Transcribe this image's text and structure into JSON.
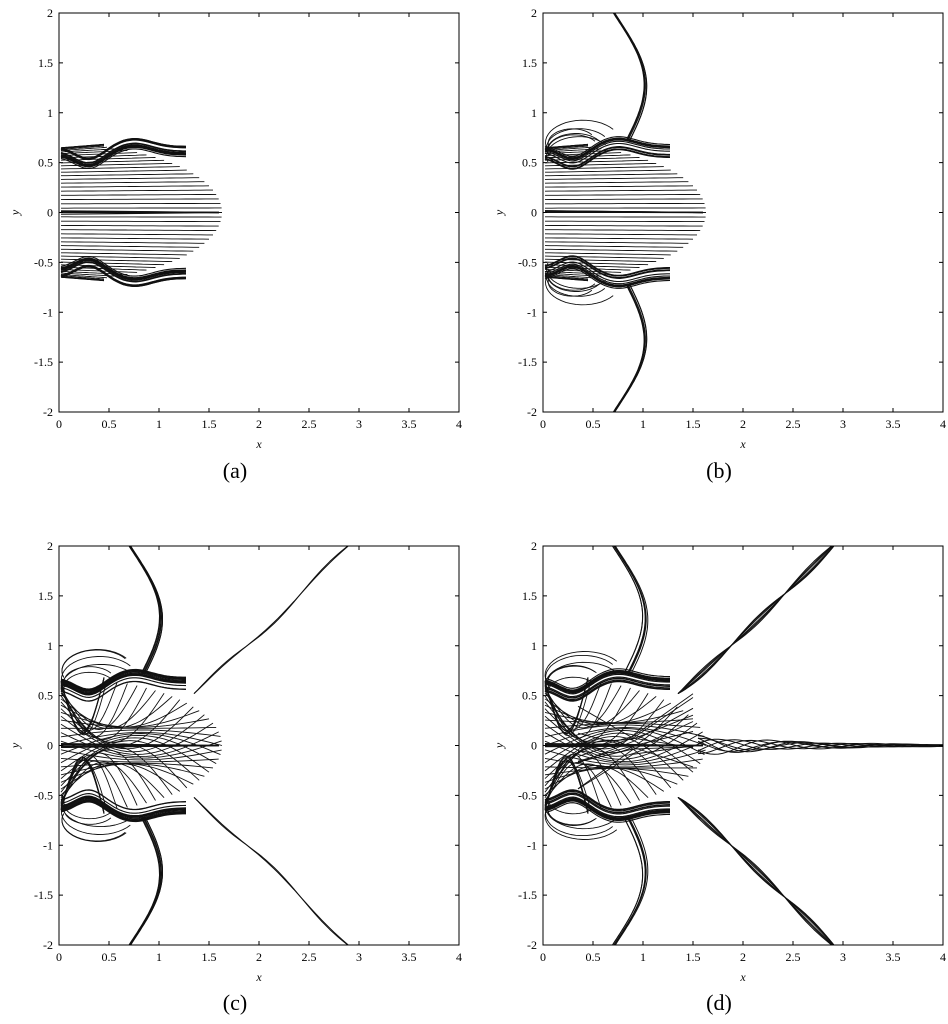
{
  "chart_data": [
    {
      "type": "line",
      "panel": "(a)",
      "xlabel": "x",
      "ylabel": "y",
      "xlim": [
        0,
        4
      ],
      "ylim": [
        -2,
        2
      ],
      "xticks": [
        "0",
        "0.5",
        "1",
        "1.5",
        "2",
        "2.5",
        "3",
        "3.5",
        "4"
      ],
      "yticks": [
        "-2",
        "-1.5",
        "-1",
        "-0.5",
        "0",
        "0.5",
        "1",
        "1.5",
        "2"
      ],
      "grid": false,
      "stage": 0
    },
    {
      "type": "line",
      "panel": "(b)",
      "xlabel": "x",
      "ylabel": "y",
      "xlim": [
        0,
        4
      ],
      "ylim": [
        -2,
        2
      ],
      "xticks": [
        "0",
        "0.5",
        "1",
        "1.5",
        "2",
        "2.5",
        "3",
        "3.5",
        "4"
      ],
      "yticks": [
        "-2",
        "-1.5",
        "-1",
        "-0.5",
        "0",
        "0.5",
        "1",
        "1.5",
        "2"
      ],
      "grid": false,
      "stage": 1
    },
    {
      "type": "line",
      "panel": "(c)",
      "xlabel": "x",
      "ylabel": "y",
      "xlim": [
        0,
        4
      ],
      "ylim": [
        -2,
        2
      ],
      "xticks": [
        "0",
        "0.5",
        "1",
        "1.5",
        "2",
        "2.5",
        "3",
        "3.5",
        "4"
      ],
      "yticks": [
        "-2",
        "-1.5",
        "-1",
        "-0.5",
        "0",
        "0.5",
        "1",
        "1.5",
        "2"
      ],
      "grid": false,
      "stage": 2
    },
    {
      "type": "line",
      "panel": "(d)",
      "xlabel": "x",
      "ylabel": "y",
      "xlim": [
        0,
        4
      ],
      "ylim": [
        -2,
        2
      ],
      "xticks": [
        "0",
        "0.5",
        "1",
        "1.5",
        "2",
        "2.5",
        "3",
        "3.5",
        "4"
      ],
      "yticks": [
        "-2",
        "-1.5",
        "-1",
        "-0.5",
        "0",
        "0.5",
        "1",
        "1.5",
        "2"
      ],
      "grid": false,
      "stage": 3
    }
  ],
  "colors": {
    "line": "#111111",
    "axis": "#000000",
    "background": "#ffffff"
  }
}
